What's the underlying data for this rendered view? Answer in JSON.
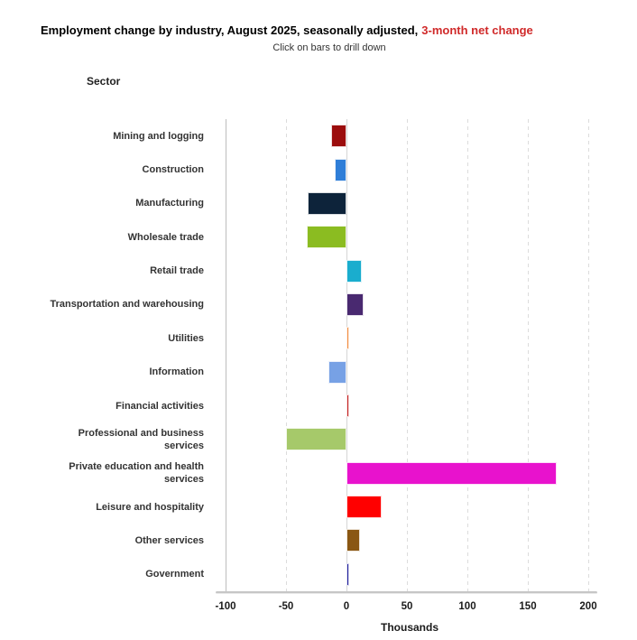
{
  "chart_data": {
    "type": "bar",
    "orientation": "horizontal",
    "title": "Employment change by industry, August 2025, seasonally adjusted,",
    "title_highlight": "3-month net change",
    "title_highlight_color": "#d02a2a",
    "subtitle": "Click on bars to drill down",
    "y_axis_title": "Sector",
    "x_axis_title": "Thousands",
    "xlim": [
      -100,
      200
    ],
    "x_ticks": [
      -100,
      -50,
      0,
      50,
      100,
      150,
      200
    ],
    "grid": "vertical-dashed",
    "legend": "none",
    "points": [
      {
        "label": "Mining and logging",
        "value": -13,
        "color": "#9c0d0d"
      },
      {
        "label": "Construction",
        "value": -10,
        "color": "#2f7ed8"
      },
      {
        "label": "Manufacturing",
        "value": -32,
        "color": "#0d233a"
      },
      {
        "label": "Wholesale trade",
        "value": -33,
        "color": "#8bbc21"
      },
      {
        "label": "Retail trade",
        "value": 13,
        "color": "#1aadce"
      },
      {
        "label": "Transportation and warehousing",
        "value": 14,
        "color": "#492970"
      },
      {
        "label": "Utilities",
        "value": 2,
        "color": "#f28f43"
      },
      {
        "label": "Information",
        "value": -15,
        "color": "#77a1e5"
      },
      {
        "label": "Financial activities",
        "value": 2,
        "color": "#c42525"
      },
      {
        "label": "Professional and business services",
        "value": -50,
        "color": "#a6c96a"
      },
      {
        "label": "Private education and health services",
        "label_lines": [
          "Private education and health",
          "services"
        ],
        "value": 174,
        "color": "#e812cd"
      },
      {
        "label": "Leisure and hospitality",
        "value": 29,
        "color": "#ff0000"
      },
      {
        "label": "Other services",
        "value": 11,
        "color": "#8a5713"
      },
      {
        "label": "Government",
        "value": 2,
        "color": "#22219b"
      }
    ]
  }
}
